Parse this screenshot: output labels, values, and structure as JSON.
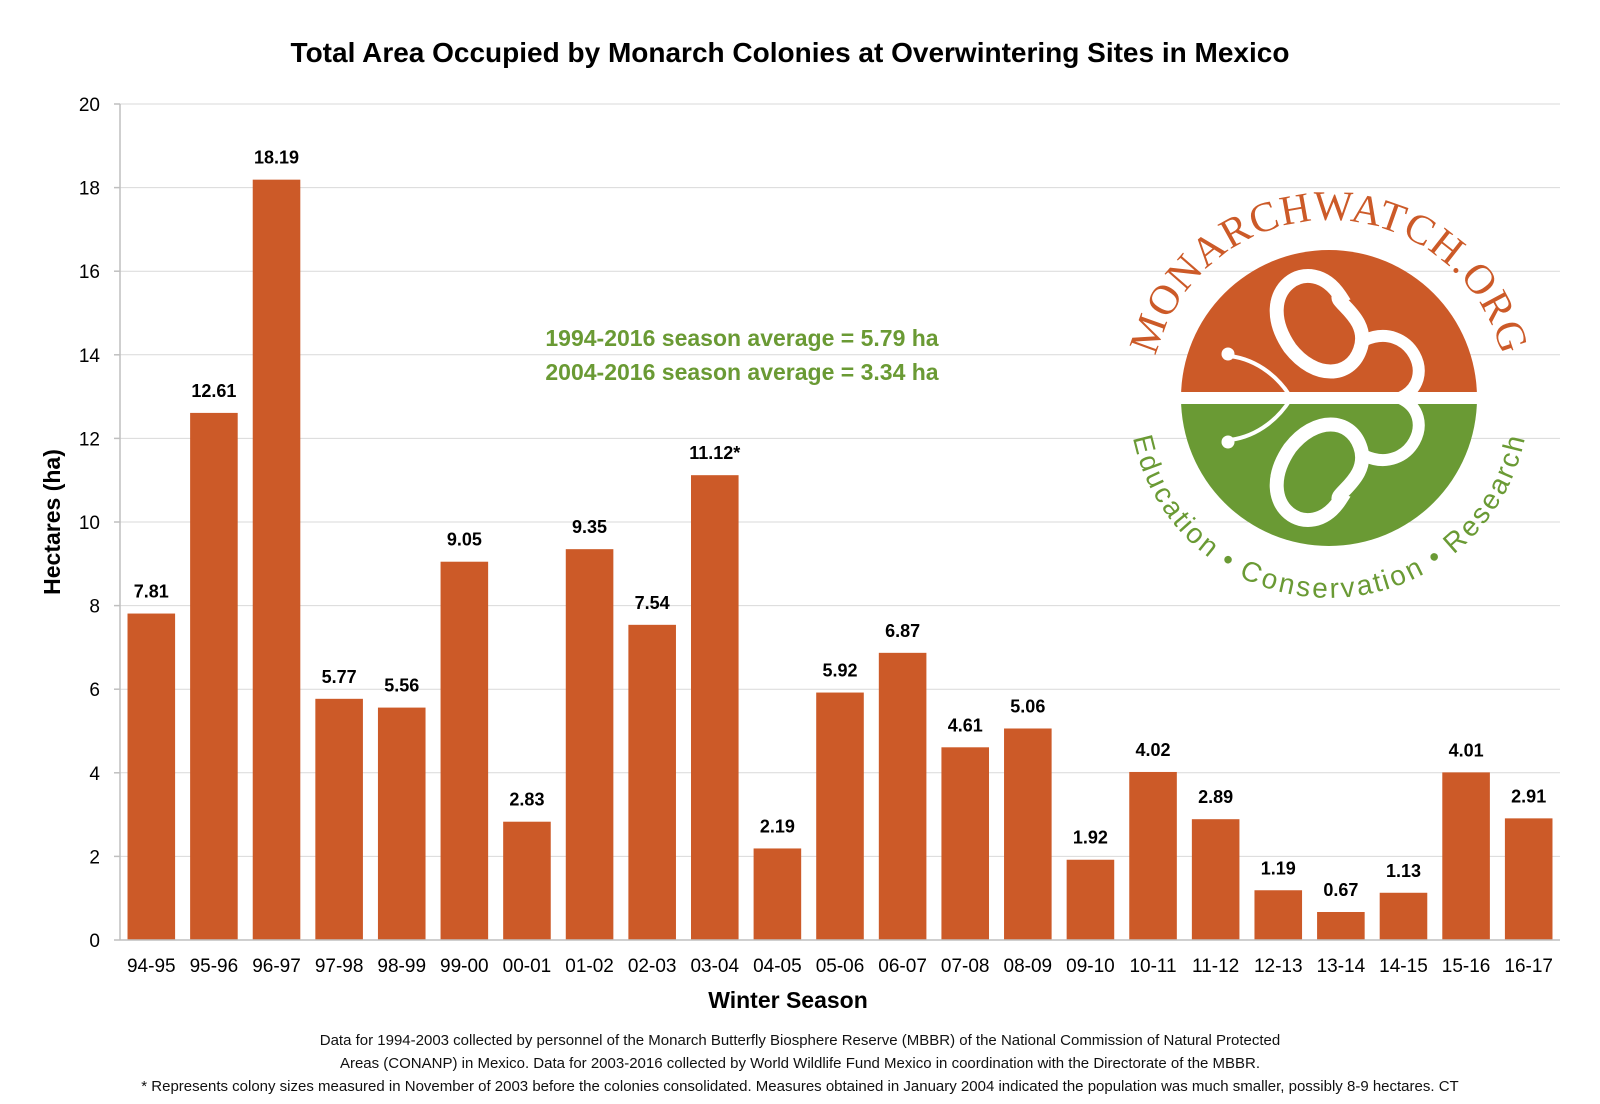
{
  "chart_data": {
    "type": "bar",
    "title": "Total Area Occupied by Monarch Colonies at Overwintering Sites in Mexico",
    "xlabel": "Winter Season",
    "ylabel": "Hectares (ha)",
    "ylim": [
      0,
      20
    ],
    "yticks": [
      "0",
      "2",
      "4",
      "6",
      "8",
      "10",
      "12",
      "14",
      "16",
      "18",
      "20"
    ],
    "grid": true,
    "categories": [
      "94-95",
      "95-96",
      "96-97",
      "97-98",
      "98-99",
      "99-00",
      "00-01",
      "01-02",
      "02-03",
      "03-04",
      "04-05",
      "05-06",
      "06-07",
      "07-08",
      "08-09",
      "09-10",
      "10-11",
      "11-12",
      "12-13",
      "13-14",
      "14-15",
      "15-16",
      "16-17"
    ],
    "values": [
      7.81,
      12.61,
      18.19,
      5.77,
      5.56,
      9.05,
      2.83,
      9.35,
      7.54,
      11.12,
      2.19,
      5.92,
      6.87,
      4.61,
      5.06,
      1.92,
      4.02,
      2.89,
      1.19,
      0.67,
      1.13,
      4.01,
      2.91
    ],
    "data_labels": [
      "7.81",
      "12.61",
      "18.19",
      "5.77",
      "5.56",
      "9.05",
      "2.83",
      "9.35",
      "7.54",
      "11.12*",
      "2.19",
      "5.92",
      "6.87",
      "4.61",
      "5.06",
      "1.92",
      "4.02",
      "2.89",
      "1.19",
      "0.67",
      "1.13",
      "4.01",
      "2.91"
    ],
    "annotations": [
      "1994-2016 season average = 5.79 ha",
      "2004-2016 season average = 3.34 ha"
    ]
  },
  "colors": {
    "bar": "#cc5a28",
    "annotation": "#6a9a34",
    "logo_orange": "#cc5a28",
    "logo_green": "#6a9a34",
    "grid": "#d9d9d9"
  },
  "logo": {
    "icon": "monarch-butterfly-icon",
    "top_text": "MONARCHWATCH.ORG",
    "bottom_text": "Education • Conservation • Research"
  },
  "footnotes": [
    "Data for 1994-2003 collected by personnel of the Monarch Butterfly Biosphere Reserve (MBBR) of the National Commission of Natural Protected",
    "Areas (CONANP) in Mexico. Data for 2003-2016 collected by World Wildlife Fund Mexico in coordination with the Directorate of the MBBR.",
    "* Represents colony sizes measured in November of 2003 before the colonies consolidated. Measures obtained in January 2004 indicated the population was much smaller, possibly 8-9 hectares. CT"
  ]
}
